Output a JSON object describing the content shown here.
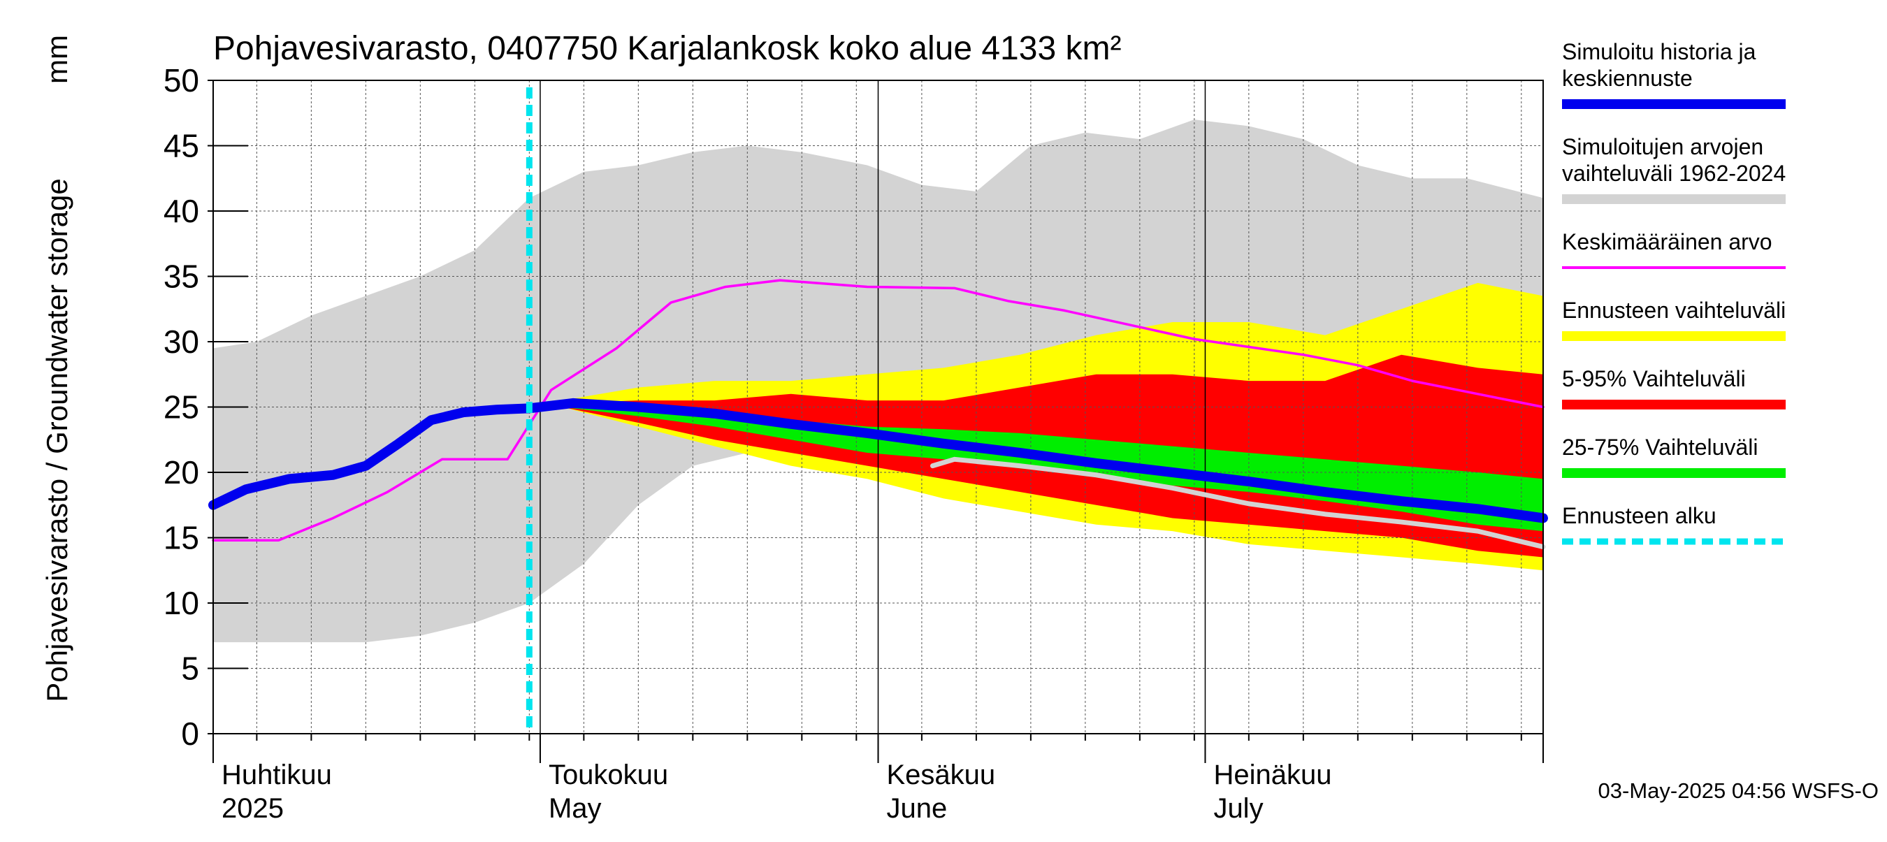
{
  "chart_data": {
    "type": "area",
    "title": "Pohjavesivarasto, 0407750 Karjalankosk koko alue 4133 km²",
    "ylabel": "Pohjavesivarasto / Groundwater storage",
    "yunit": "mm",
    "ylim": [
      0,
      50
    ],
    "yticks": [
      0,
      5,
      10,
      15,
      20,
      25,
      30,
      35,
      40,
      45,
      50
    ],
    "grid": true,
    "legend_position": "right",
    "footer": "03-May-2025 04:56 WSFS-O",
    "xdomain": [
      "2025-04-01",
      "2025-08-01"
    ],
    "month_labels": [
      {
        "fi": "Huhtikuu",
        "en": "2025",
        "date": "2025-04-01"
      },
      {
        "fi": "Toukokuu",
        "en": "May",
        "date": "2025-05-01"
      },
      {
        "fi": "Kesäkuu",
        "en": "June",
        "date": "2025-06-01"
      },
      {
        "fi": "Heinäkuu",
        "en": "July",
        "date": "2025-07-01"
      }
    ],
    "forecast_start": "2025-04-30",
    "legend": [
      {
        "label": "Simuloitu historia ja keskiennuste",
        "lines": [
          "Simuloitu historia ja",
          "keskiennuste"
        ],
        "color": "#0000ee",
        "kind": "thick"
      },
      {
        "label": "Simuloitujen arvojen vaihteluväli 1962-2024",
        "lines": [
          "Simuloitujen arvojen",
          "vaihteluväli 1962-2024"
        ],
        "color": "#d3d3d3",
        "kind": "thick"
      },
      {
        "label": "Keskimääräinen arvo",
        "lines": [
          "Keskimääräinen arvo"
        ],
        "color": "#ff00ff",
        "kind": "thin"
      },
      {
        "label": "Ennusteen vaihteluväli",
        "lines": [
          "Ennusteen vaihteluväli"
        ],
        "color": "#ffff00",
        "kind": "thick"
      },
      {
        "label": "5-95% Vaihteluväli",
        "lines": [
          "5-95% Vaihteluväli"
        ],
        "color": "#ff0000",
        "kind": "thick"
      },
      {
        "label": "25-75% Vaihteluväli",
        "lines": [
          "25-75% Vaihteluväli"
        ],
        "color": "#00ee00",
        "kind": "thick"
      },
      {
        "label": "Ennusteen alku",
        "lines": [
          "Ennusteen alku"
        ],
        "color": "#00e5ee",
        "kind": "dashed"
      }
    ],
    "series": [
      {
        "name": "Simuloitujen arvojen vaihteluväli 1962-2024",
        "kind": "band",
        "color": "#d3d3d3",
        "x": [
          "2025-04-01",
          "2025-04-05",
          "2025-04-10",
          "2025-04-15",
          "2025-04-20",
          "2025-04-25",
          "2025-04-30",
          "2025-05-05",
          "2025-05-10",
          "2025-05-15",
          "2025-05-20",
          "2025-05-25",
          "2025-05-31",
          "2025-06-05",
          "2025-06-10",
          "2025-06-15",
          "2025-06-20",
          "2025-06-25",
          "2025-06-30",
          "2025-07-05",
          "2025-07-10",
          "2025-07-15",
          "2025-07-20",
          "2025-07-25",
          "2025-08-01"
        ],
        "lower": [
          7,
          7,
          7,
          7,
          7.5,
          8.5,
          10,
          13,
          17.5,
          20.5,
          21.5,
          21.5,
          21,
          20.5,
          20.5,
          20.5,
          20.5,
          20,
          19.5,
          19,
          18.5,
          18,
          17.5,
          16.5,
          16
        ],
        "upper": [
          29.5,
          30,
          32,
          33.5,
          35,
          37,
          41,
          43,
          43.5,
          44.5,
          45,
          44.5,
          43.5,
          42,
          41.5,
          45,
          46,
          45.5,
          47,
          46.5,
          45.5,
          43.5,
          42.5,
          42.5,
          41
        ]
      },
      {
        "name": "Ennusteen vaihteluväli",
        "kind": "band",
        "color": "#ffff00",
        "x": [
          "2025-05-03",
          "2025-05-10",
          "2025-05-17",
          "2025-05-24",
          "2025-05-31",
          "2025-06-07",
          "2025-06-14",
          "2025-06-21",
          "2025-06-28",
          "2025-07-05",
          "2025-07-12",
          "2025-07-19",
          "2025-07-26",
          "2025-08-01"
        ],
        "lower": [
          25,
          23.5,
          22,
          20.5,
          19.5,
          18,
          17,
          16,
          15.5,
          14.5,
          14,
          13.5,
          13,
          12.5
        ],
        "upper": [
          25.5,
          26.5,
          27,
          27,
          27.5,
          28,
          29,
          30.5,
          31.5,
          31.5,
          30.5,
          32.5,
          34.5,
          33.5
        ]
      },
      {
        "name": "5-95% Vaihteluväli",
        "kind": "band",
        "color": "#ff0000",
        "x": [
          "2025-05-03",
          "2025-05-10",
          "2025-05-17",
          "2025-05-24",
          "2025-05-31",
          "2025-06-07",
          "2025-06-14",
          "2025-06-21",
          "2025-06-28",
          "2025-07-05",
          "2025-07-12",
          "2025-07-19",
          "2025-07-26",
          "2025-08-01"
        ],
        "lower": [
          25,
          23.8,
          22.5,
          21.5,
          20.5,
          19.5,
          18.5,
          17.5,
          16.5,
          16,
          15.5,
          15,
          14,
          13.5
        ],
        "upper": [
          25.3,
          25.5,
          25.5,
          26,
          25.5,
          25.5,
          26.5,
          27.5,
          27.5,
          27,
          27,
          29,
          28,
          27.5
        ]
      },
      {
        "name": "25-75% Vaihteluväli",
        "kind": "band",
        "color": "#00ee00",
        "x": [
          "2025-05-03",
          "2025-05-10",
          "2025-05-17",
          "2025-05-24",
          "2025-05-31",
          "2025-06-07",
          "2025-06-14",
          "2025-06-21",
          "2025-06-28",
          "2025-07-05",
          "2025-07-12",
          "2025-07-19",
          "2025-07-26",
          "2025-08-01"
        ],
        "lower": [
          25,
          24.3,
          23.5,
          22.5,
          21.5,
          21,
          20.3,
          19.8,
          19,
          18.5,
          17.8,
          17,
          16,
          15.5
        ],
        "upper": [
          25.2,
          25,
          24.6,
          24,
          23.5,
          23.3,
          23,
          22.5,
          22,
          21.5,
          21,
          20.5,
          20,
          19.5
        ]
      },
      {
        "name": "Keskimääräinen arvo",
        "kind": "line",
        "color": "#ff00ff",
        "x": [
          "2025-04-01",
          "2025-04-07",
          "2025-04-12",
          "2025-04-17",
          "2025-04-22",
          "2025-04-28",
          "2025-05-02",
          "2025-05-08",
          "2025-05-13",
          "2025-05-18",
          "2025-05-23",
          "2025-05-31",
          "2025-06-08",
          "2025-06-13",
          "2025-06-18",
          "2025-06-24",
          "2025-06-30",
          "2025-07-05",
          "2025-07-10",
          "2025-07-15",
          "2025-07-20",
          "2025-07-26",
          "2025-08-01"
        ],
        "y": [
          14.8,
          14.8,
          16.5,
          18.5,
          21,
          21,
          26.3,
          29.5,
          33,
          34.2,
          34.7,
          34.2,
          34.1,
          33.1,
          32.4,
          31.3,
          30.2,
          29.6,
          29,
          28.2,
          27,
          26,
          25
        ]
      },
      {
        "name": "Mediaani",
        "kind": "line",
        "color": "#d3d3d3",
        "x": [
          "2025-06-06",
          "2025-06-08",
          "2025-06-14",
          "2025-06-21",
          "2025-06-28",
          "2025-07-05",
          "2025-07-12",
          "2025-07-19",
          "2025-07-26",
          "2025-08-01"
        ],
        "y": [
          20.5,
          21,
          20.5,
          19.8,
          18.8,
          17.6,
          16.8,
          16.2,
          15.5,
          14.3
        ]
      },
      {
        "name": "Simuloitu historia ja keskiennuste",
        "kind": "line",
        "color": "#0000ee",
        "x": [
          "2025-04-01",
          "2025-04-04",
          "2025-04-08",
          "2025-04-12",
          "2025-04-15",
          "2025-04-18",
          "2025-04-21",
          "2025-04-24",
          "2025-04-27",
          "2025-04-30",
          "2025-05-04",
          "2025-05-10",
          "2025-05-17",
          "2025-05-24",
          "2025-05-31",
          "2025-06-07",
          "2025-06-14",
          "2025-06-21",
          "2025-06-28",
          "2025-07-05",
          "2025-07-12",
          "2025-07-19",
          "2025-07-26",
          "2025-08-01"
        ],
        "y": [
          17.5,
          18.7,
          19.5,
          19.8,
          20.5,
          22.2,
          24,
          24.6,
          24.8,
          24.9,
          25.3,
          25,
          24.5,
          23.7,
          23,
          22.2,
          21.5,
          20.7,
          20,
          19.3,
          18.5,
          17.8,
          17.2,
          16.5
        ]
      }
    ]
  }
}
